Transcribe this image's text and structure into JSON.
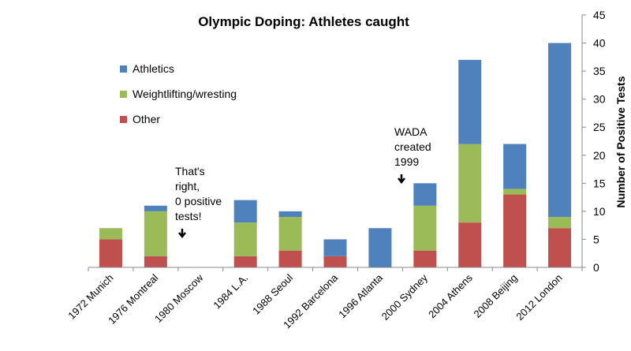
{
  "chart_data": {
    "type": "bar",
    "stacked": true,
    "title": "Olympic Doping: Athletes caught",
    "ylabel": "Number of Positive Tests",
    "xlabel": "",
    "ylim": [
      0,
      45
    ],
    "yticks": [
      0,
      5,
      10,
      15,
      20,
      25,
      30,
      35,
      40,
      45
    ],
    "y_axis_side": "right",
    "grid": false,
    "legend_placement": "top-left",
    "categories": [
      "1972 Munich",
      "1976 Montreal",
      "1980 Moscow",
      "1984  L.A.",
      "1988 Seoul",
      "1992 Barcelona",
      "1996 Atlanta",
      "2000 Sydney",
      "2004 Athens",
      "2008 Beijing",
      "2012 London"
    ],
    "series": [
      {
        "name": "Other",
        "color": "#c0504d",
        "values": [
          5,
          2,
          0,
          2,
          3,
          2,
          0,
          3,
          8,
          13,
          7
        ]
      },
      {
        "name": "Weightlifting/wresting",
        "color": "#9bbb59",
        "values": [
          2,
          8,
          0,
          6,
          6,
          0,
          0,
          8,
          14,
          1,
          2
        ]
      },
      {
        "name": "Athletics",
        "color": "#4f81bd",
        "values": [
          0,
          1,
          0,
          4,
          1,
          3,
          7,
          4,
          15,
          8,
          31
        ]
      }
    ],
    "legend_order": [
      "Athletics",
      "Weightlifting/wresting",
      "Other"
    ],
    "annotations": [
      {
        "lines": [
          "That's",
          "right,",
          "0 positive",
          "tests!"
        ],
        "category": "1980 Moscow"
      },
      {
        "lines": [
          "WADA",
          "created",
          "1999"
        ],
        "category": "2000 Sydney"
      }
    ]
  }
}
